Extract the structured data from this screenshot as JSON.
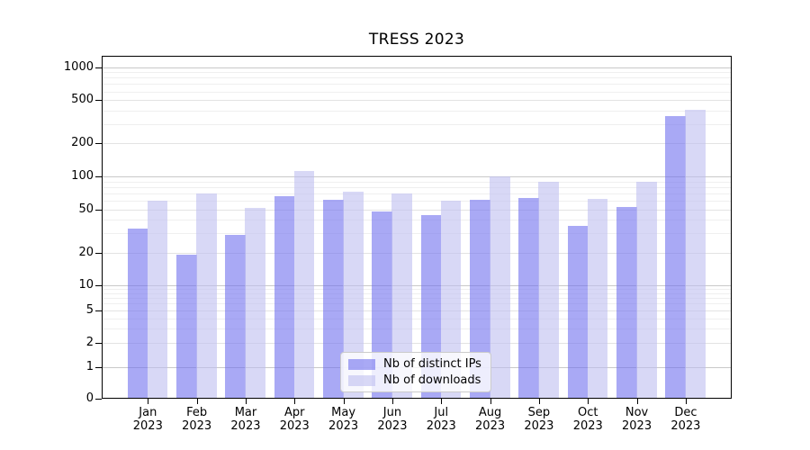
{
  "title": "TRESS 2023",
  "chart_data": {
    "type": "bar",
    "title": "TRESS 2023",
    "scale": "symlog",
    "grid": "both",
    "legend_position": "inside-lower-center",
    "ylim": [
      0,
      1000
    ],
    "y_ticks": [
      0,
      1,
      2,
      5,
      10,
      20,
      50,
      100,
      200,
      500,
      1000
    ],
    "months": [
      {
        "month": "Jan",
        "year": "2023"
      },
      {
        "month": "Feb",
        "year": "2023"
      },
      {
        "month": "Mar",
        "year": "2023"
      },
      {
        "month": "Apr",
        "year": "2023"
      },
      {
        "month": "May",
        "year": "2023"
      },
      {
        "month": "Jun",
        "year": "2023"
      },
      {
        "month": "Jul",
        "year": "2023"
      },
      {
        "month": "Aug",
        "year": "2023"
      },
      {
        "month": "Sep",
        "year": "2023"
      },
      {
        "month": "Oct",
        "year": "2023"
      },
      {
        "month": "Nov",
        "year": "2023"
      },
      {
        "month": "Dec",
        "year": "2023"
      }
    ],
    "series": [
      {
        "name": "Nb of distinct IPs",
        "color": "rgba(112,112,238,0.6)",
        "values": [
          33,
          19,
          29,
          66,
          61,
          48,
          44,
          61,
          63,
          35,
          52,
          355
        ]
      },
      {
        "name": "Nb of downloads",
        "color": "rgba(190,190,240,0.6)",
        "values": [
          60,
          70,
          51,
          113,
          72,
          70,
          60,
          100,
          90,
          62,
          89,
          405
        ]
      }
    ],
    "grid_colors": {
      "major": "#c9c9c9",
      "labeled_minor": "#e3e3e3",
      "minor": "#efefef"
    }
  }
}
